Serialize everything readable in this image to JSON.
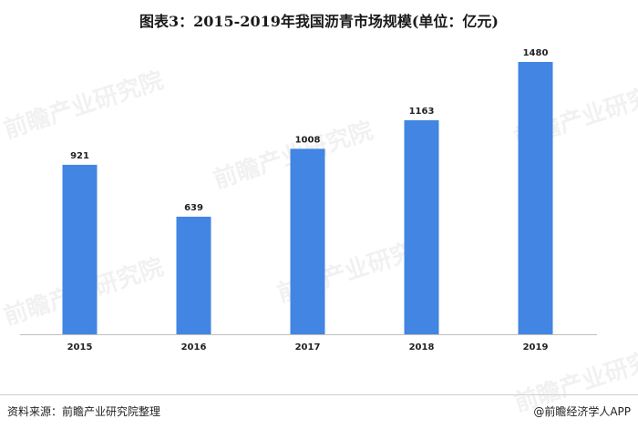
{
  "title": "图表3：2015-2019年我国沥青市场规模(单位：亿元)",
  "source": "资料来源：前瞻产业研究院整理",
  "brand": "@前瞻经济学人APP",
  "watermark": "前瞻产业研究院",
  "colors": {
    "bar": "#4285e3",
    "axis": "#bfbfbf",
    "text": "#222222"
  },
  "chart_data": {
    "type": "bar",
    "categories": [
      "2015",
      "2016",
      "2017",
      "2018",
      "2019"
    ],
    "values": [
      921,
      639,
      1008,
      1163,
      1480
    ],
    "title": "图表3：2015-2019年我国沥青市场规模(单位：亿元)",
    "xlabel": "",
    "ylabel": "",
    "ylim": [
      0,
      1480
    ],
    "grid": false,
    "legend": "none"
  }
}
